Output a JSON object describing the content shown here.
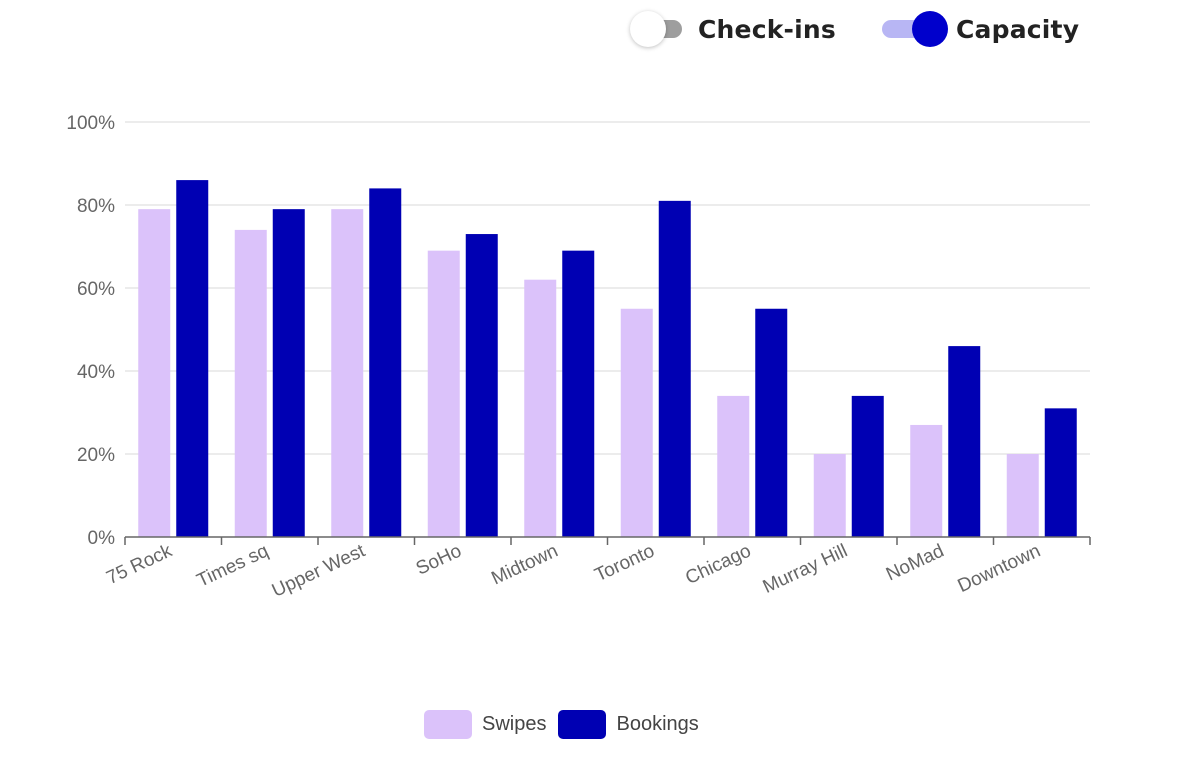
{
  "toggles": {
    "checkins": {
      "label": "Check-ins",
      "state": "off"
    },
    "capacity": {
      "label": "Capacity",
      "state": "on"
    }
  },
  "colors": {
    "swipes": "#dbc2fa",
    "bookings": "#0000b3",
    "grid": "#e6e6e6",
    "axis": "#666666"
  },
  "legend": {
    "swipes_label": "Swipes",
    "bookings_label": "Bookings"
  },
  "chart_data": {
    "type": "bar",
    "categories": [
      "75 Rock",
      "Times sq",
      "Upper West",
      "SoHo",
      "Midtown",
      "Toronto",
      "Chicago",
      "Murray Hill",
      "NoMad",
      "Downtown"
    ],
    "series": [
      {
        "name": "Swipes",
        "values": [
          79,
          74,
          79,
          69,
          62,
          55,
          34,
          20,
          27,
          20
        ]
      },
      {
        "name": "Bookings",
        "values": [
          86,
          79,
          84,
          73,
          69,
          81,
          55,
          34,
          46,
          31
        ]
      }
    ],
    "yticks": [
      "0%",
      "20%",
      "40%",
      "60%",
      "80%",
      "100%"
    ],
    "ylim": [
      0,
      100
    ],
    "grid": true,
    "legend_position": "bottom"
  }
}
